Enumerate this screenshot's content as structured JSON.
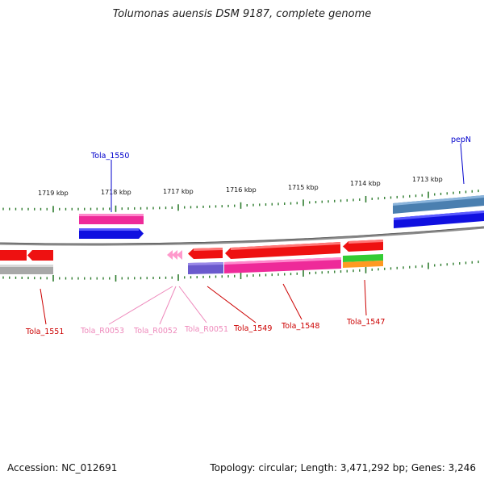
{
  "title": "Tolumonas auensis DSM 9187, complete genome",
  "footer": {
    "accession": "Accession: NC_012691",
    "topology": "Topology: circular; Length: 3,471,292 bp; Genes: 3,246"
  },
  "scale_labels": [
    {
      "text": "1719 kbp"
    },
    {
      "text": "1718 kbp"
    },
    {
      "text": "1717 kbp"
    },
    {
      "text": "1716 kbp"
    },
    {
      "text": "1715 kbp"
    },
    {
      "text": "1714 kbp"
    },
    {
      "text": "1713 kbp"
    }
  ],
  "gene_labels": [
    {
      "text": "Tola_1550",
      "color": "#0000cc"
    },
    {
      "text": "pepN",
      "color": "#0000cc"
    },
    {
      "text": "Tola_1551",
      "color": "#cc0000"
    },
    {
      "text": "Tola_R0053",
      "color": "#ee88bb"
    },
    {
      "text": "Tola_R0052",
      "color": "#ee88bb"
    },
    {
      "text": "Tola_R0051",
      "color": "#ee88bb"
    },
    {
      "text": "Tola_1549",
      "color": "#cc0000"
    },
    {
      "text": "Tola_1548",
      "color": "#cc0000"
    },
    {
      "text": "Tola_1547",
      "color": "#cc0000"
    }
  ],
  "colors": {
    "backbone": "#8c8c8c",
    "ticks": "#2f7d2f",
    "gene_cds": "#ee1111",
    "gene_pink": "#ee2a99",
    "gene_blue": "#1010e0",
    "gene_steel": "#4a7fb0",
    "gene_purple": "#6a5acd",
    "gene_green": "#33cc33",
    "gene_orange": "#ff9922",
    "gene_gray": "#a8a8a8",
    "rna_pink": "#ff99cc"
  }
}
